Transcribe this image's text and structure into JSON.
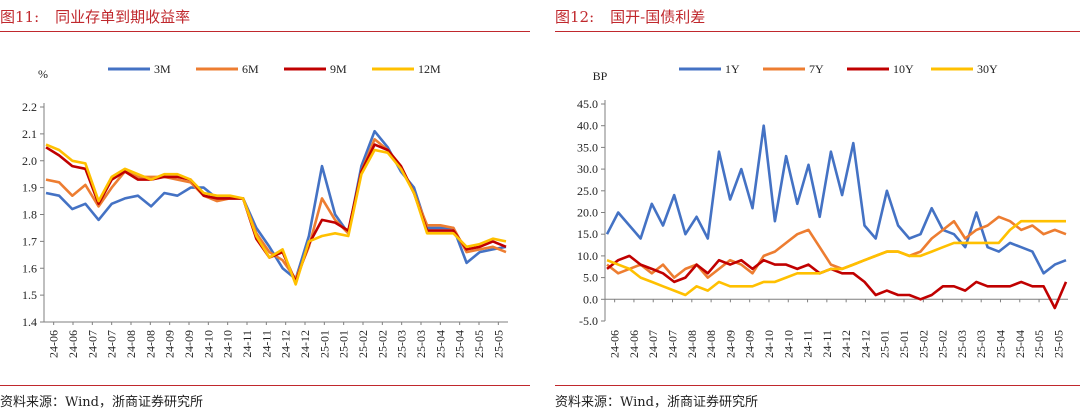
{
  "panels": [
    {
      "fig_num": "图11:",
      "fig_title": "同业存单到期收益率",
      "source": "资料来源：Wind，浙商证券研究所"
    },
    {
      "fig_num": "图12:",
      "fig_title": "国开-国债利差",
      "source": "资料来源：Wind，浙商证券研究所"
    }
  ],
  "chart_data": [
    {
      "type": "line",
      "title": "",
      "ylabel": "%",
      "xlabel": "",
      "ylim": [
        1.4,
        2.2
      ],
      "yticks": [
        "1.4",
        "1.5",
        "1.6",
        "1.7",
        "1.8",
        "1.9",
        "2.0",
        "2.1",
        "2.2"
      ],
      "xtick_labels": [
        "24-06",
        "24-06",
        "24-07",
        "24-07",
        "24-08",
        "24-08",
        "24-09",
        "24-09",
        "24-10",
        "24-10",
        "24-11",
        "24-11",
        "24-12",
        "24-12",
        "25-01",
        "25-01",
        "25-02",
        "25-02",
        "25-03",
        "25-03",
        "25-04",
        "25-04",
        "25-05",
        "25-05"
      ],
      "grid": false,
      "legend": "top",
      "series": [
        {
          "name": "3M",
          "color": "#4472c4",
          "values": [
            1.88,
            1.87,
            1.82,
            1.84,
            1.78,
            1.84,
            1.86,
            1.87,
            1.83,
            1.88,
            1.87,
            1.9,
            1.9,
            1.86,
            1.86,
            1.86,
            1.75,
            1.68,
            1.6,
            1.56,
            1.72,
            1.98,
            1.8,
            1.73,
            1.98,
            2.11,
            2.05,
            1.96,
            1.9,
            1.75,
            1.75,
            1.75,
            1.62,
            1.66,
            1.67,
            1.68
          ]
        },
        {
          "name": "6M",
          "color": "#ed7d31",
          "values": [
            1.93,
            1.92,
            1.87,
            1.91,
            1.83,
            1.9,
            1.96,
            1.94,
            1.94,
            1.94,
            1.93,
            1.92,
            1.87,
            1.85,
            1.86,
            1.86,
            1.73,
            1.66,
            1.63,
            1.56,
            1.68,
            1.86,
            1.78,
            1.73,
            1.96,
            2.08,
            2.04,
            1.98,
            1.88,
            1.76,
            1.76,
            1.75,
            1.66,
            1.67,
            1.68,
            1.66
          ]
        },
        {
          "name": "9M",
          "color": "#c00000",
          "values": [
            2.05,
            2.02,
            1.98,
            1.97,
            1.84,
            1.93,
            1.96,
            1.93,
            1.93,
            1.94,
            1.94,
            1.93,
            1.87,
            1.86,
            1.86,
            1.86,
            1.71,
            1.64,
            1.66,
            1.55,
            1.69,
            1.78,
            1.77,
            1.74,
            1.96,
            2.06,
            2.04,
            1.98,
            1.88,
            1.74,
            1.74,
            1.74,
            1.67,
            1.68,
            1.7,
            1.68
          ]
        },
        {
          "name": "12M",
          "color": "#ffc000",
          "values": [
            2.06,
            2.04,
            2.0,
            1.99,
            1.85,
            1.94,
            1.97,
            1.95,
            1.93,
            1.95,
            1.95,
            1.93,
            1.88,
            1.87,
            1.87,
            1.86,
            1.72,
            1.64,
            1.67,
            1.54,
            1.7,
            1.72,
            1.73,
            1.72,
            1.95,
            2.04,
            2.03,
            1.97,
            1.88,
            1.73,
            1.73,
            1.73,
            1.68,
            1.69,
            1.71,
            1.7
          ]
        }
      ]
    },
    {
      "type": "line",
      "title": "",
      "ylabel": "BP",
      "xlabel": "",
      "ylim": [
        -5.0,
        45.0
      ],
      "yticks": [
        "-5.0",
        "0.0",
        "5.0",
        "10.0",
        "15.0",
        "20.0",
        "25.0",
        "30.0",
        "35.0",
        "40.0",
        "45.0"
      ],
      "xtick_labels": [
        "24-06",
        "24-06",
        "24-07",
        "24-07",
        "24-08",
        "24-08",
        "24-09",
        "24-09",
        "24-10",
        "24-10",
        "24-11",
        "24-11",
        "24-12",
        "24-12",
        "25-01",
        "25-01",
        "25-02",
        "25-02",
        "25-03",
        "25-03",
        "25-04",
        "25-04",
        "25-05",
        "25-05"
      ],
      "grid": false,
      "legend": "top",
      "series": [
        {
          "name": "1Y",
          "color": "#4472c4",
          "values": [
            15,
            20,
            17,
            14,
            22,
            17,
            24,
            15,
            19,
            14,
            34,
            23,
            30,
            21,
            40,
            18,
            33,
            22,
            31,
            19,
            34,
            24,
            36,
            17,
            14,
            25,
            17,
            14,
            15,
            21,
            16,
            15,
            12,
            20,
            12,
            11,
            13,
            12,
            11,
            6,
            8,
            9
          ]
        },
        {
          "name": "7Y",
          "color": "#ed7d31",
          "values": [
            8,
            6,
            7,
            8,
            6,
            8,
            5,
            7,
            8,
            5,
            7,
            9,
            8,
            6,
            10,
            11,
            13,
            15,
            16,
            12,
            8,
            7,
            8,
            9,
            10,
            11,
            11,
            10,
            11,
            14,
            16,
            18,
            14,
            16,
            17,
            19,
            18,
            16,
            17,
            15,
            16,
            15
          ]
        },
        {
          "name": "10Y",
          "color": "#c00000",
          "values": [
            7,
            9,
            10,
            8,
            7,
            6,
            4,
            5,
            8,
            6,
            9,
            8,
            9,
            7,
            9,
            8,
            8,
            7,
            8,
            6,
            7,
            6,
            6,
            4,
            1,
            2,
            1,
            1,
            0,
            1,
            3,
            3,
            2,
            4,
            3,
            3,
            3,
            4,
            3,
            3,
            -2,
            4
          ]
        },
        {
          "name": "30Y",
          "color": "#ffc000",
          "values": [
            9,
            8,
            7,
            5,
            4,
            3,
            2,
            1,
            3,
            2,
            4,
            3,
            3,
            3,
            4,
            4,
            5,
            6,
            6,
            6,
            7,
            7,
            8,
            9,
            10,
            11,
            11,
            10,
            10,
            11,
            12,
            13,
            13,
            13,
            13,
            13,
            16,
            18,
            18,
            18,
            18,
            18
          ]
        }
      ]
    }
  ]
}
